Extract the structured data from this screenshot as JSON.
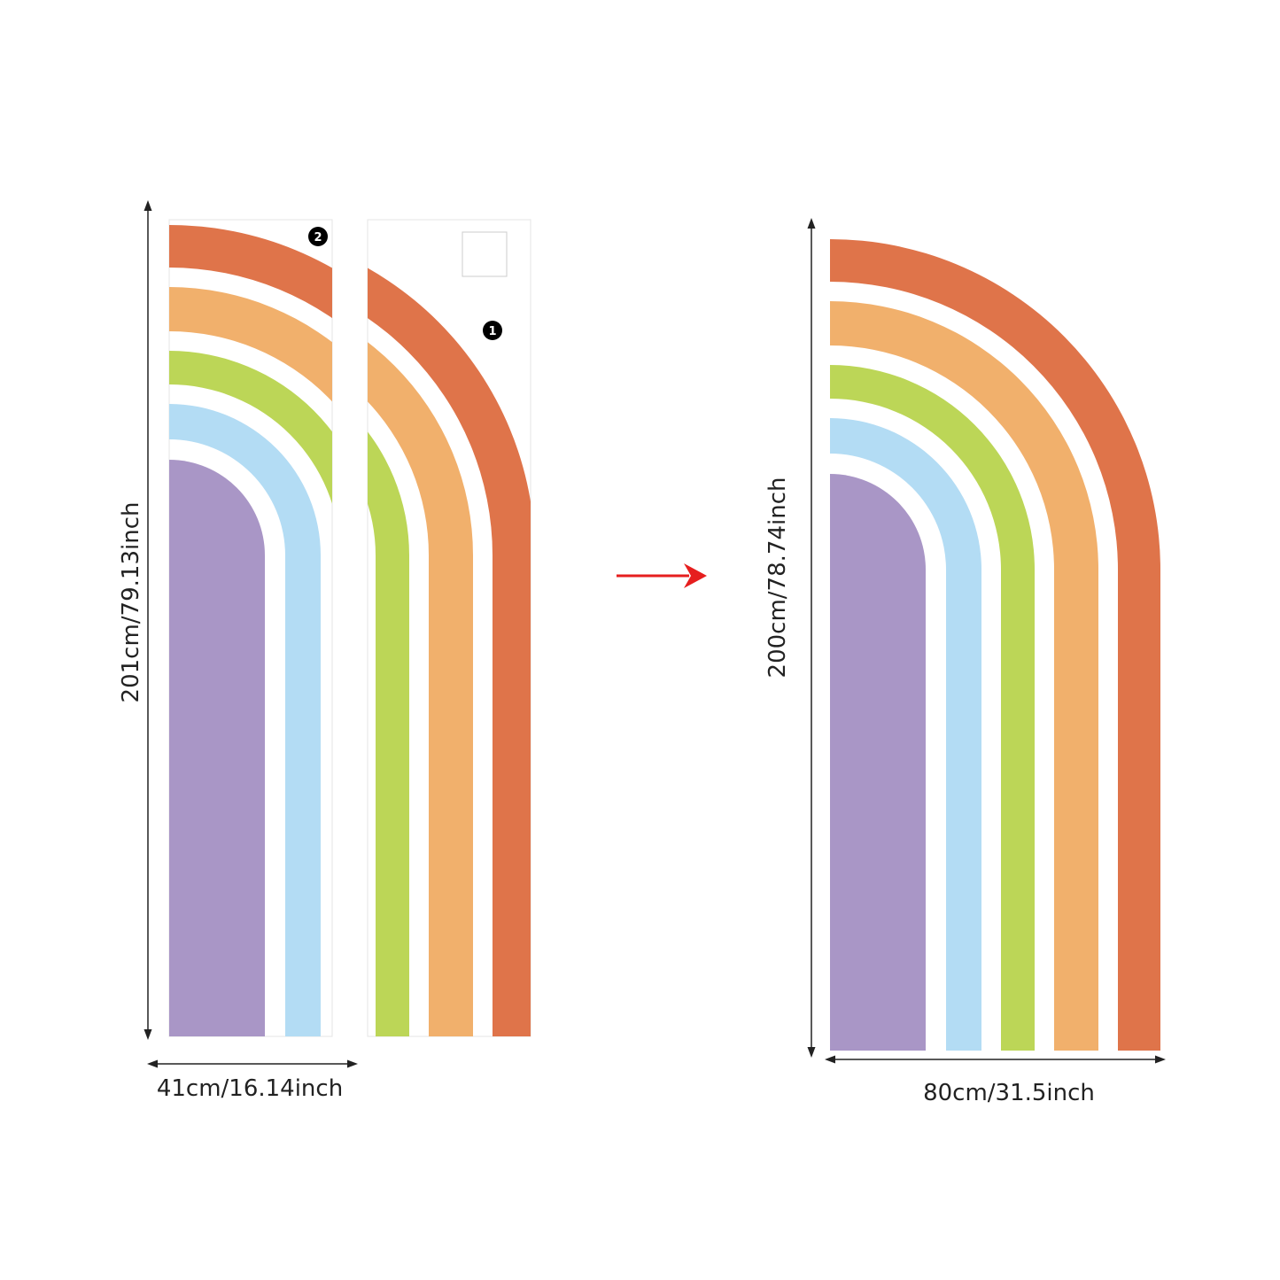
{
  "left": {
    "height_label": "201cm/79.13inch",
    "width_label": "41cm/16.14inch",
    "panels": [
      {
        "number": "2"
      },
      {
        "number": "1"
      }
    ]
  },
  "right": {
    "height_label": "200cm/78.74inch",
    "width_label": "80cm/31.5inch"
  }
}
